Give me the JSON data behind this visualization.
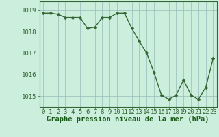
{
  "x": [
    0,
    1,
    2,
    3,
    4,
    5,
    6,
    7,
    8,
    9,
    10,
    11,
    12,
    13,
    14,
    15,
    16,
    17,
    18,
    19,
    20,
    21,
    22,
    23
  ],
  "y": [
    1018.85,
    1018.85,
    1018.8,
    1018.65,
    1018.65,
    1018.65,
    1018.15,
    1018.2,
    1018.65,
    1018.65,
    1018.85,
    1018.85,
    1018.15,
    1017.55,
    1017.0,
    1016.1,
    1015.05,
    1014.85,
    1015.05,
    1015.75,
    1015.05,
    1014.85,
    1015.4,
    1016.75
  ],
  "line_color": "#336633",
  "marker": "D",
  "marker_size": 2.5,
  "linewidth": 1.0,
  "background_color": "#cceedd",
  "grid_color": "#99bbbb",
  "xlabel": "Graphe pression niveau de la mer (hPa)",
  "xlabel_fontsize": 7.5,
  "xlabel_color": "#1a5c1a",
  "xlabel_fontweight": "bold",
  "tick_color": "#336633",
  "tick_fontsize": 6.5,
  "ylim": [
    1014.5,
    1019.4
  ],
  "yticks": [
    1015,
    1016,
    1017,
    1018,
    1019
  ],
  "xlim": [
    -0.5,
    23.5
  ],
  "xticks": [
    0,
    1,
    2,
    3,
    4,
    5,
    6,
    7,
    8,
    9,
    10,
    11,
    12,
    13,
    14,
    15,
    16,
    17,
    18,
    19,
    20,
    21,
    22,
    23
  ],
  "xtick_labels": [
    "0",
    "1",
    "2",
    "3",
    "4",
    "5",
    "6",
    "7",
    "8",
    "9",
    "10",
    "11",
    "12",
    "13",
    "14",
    "15",
    "16",
    "17",
    "18",
    "19",
    "20",
    "21",
    "22",
    "23"
  ],
  "spine_color": "#336633"
}
